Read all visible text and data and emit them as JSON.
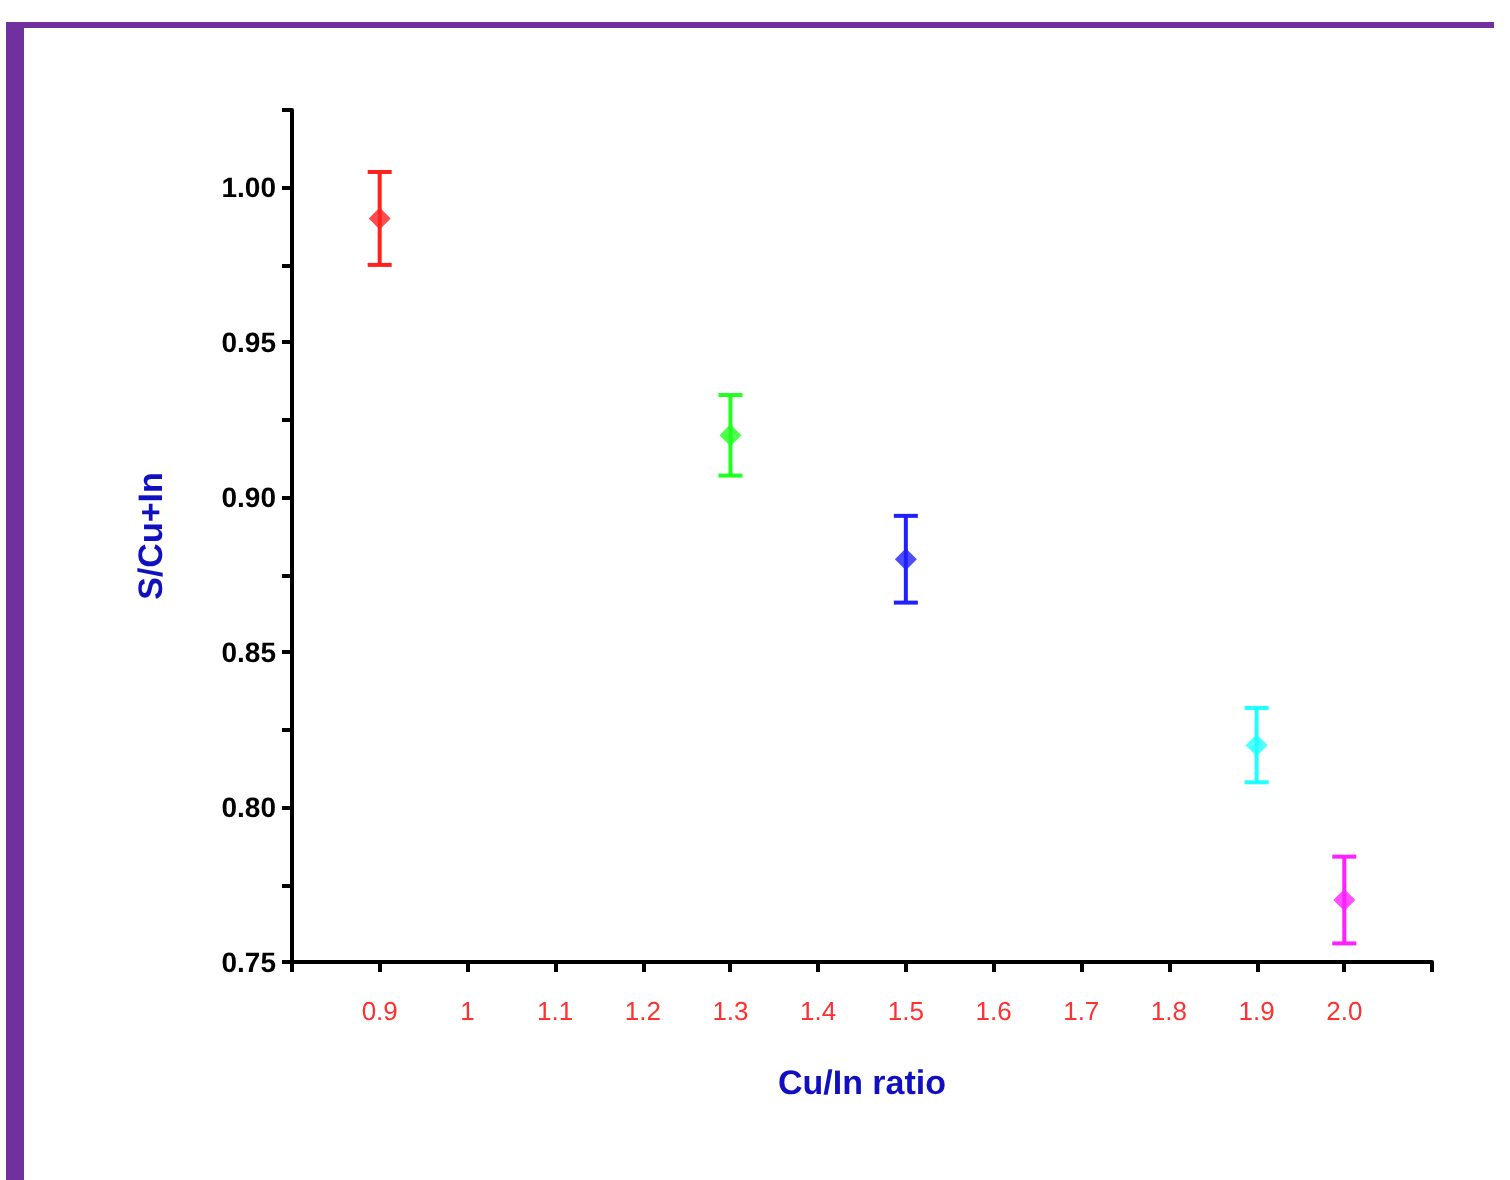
{
  "chart_data": {
    "type": "scatter",
    "xlabel": "Cu/In ratio",
    "ylabel": "S/Cu+In",
    "x": [
      0.9,
      1.3,
      1.5,
      1.9,
      2.0
    ],
    "series": [
      {
        "values": [
          0.99,
          0.92,
          0.88,
          0.82,
          0.77
        ],
        "colors": [
          "#ff2020",
          "#20ff20",
          "#2020ff",
          "#20ffff",
          "#ff20ff"
        ],
        "errors": [
          0.015,
          0.013,
          0.014,
          0.012,
          0.014
        ]
      }
    ],
    "xlim": [
      0.8,
      2.1
    ],
    "xticks": [
      {
        "value": 0.8,
        "label": null
      },
      0.9,
      1,
      1.1,
      1.2,
      1.3,
      1.4,
      1.5,
      1.6,
      1.7,
      1.8,
      1.9,
      {
        "value": 2.0,
        "label": "2.0"
      },
      {
        "value": 2.1,
        "label": null
      }
    ],
    "ylim": [
      0.75,
      1.025
    ],
    "yticks": [
      0.75,
      {
        "value": 0.775,
        "label": null
      },
      {
        "value": 0.8,
        "label": "0.80"
      },
      {
        "value": 0.825,
        "label": null
      },
      0.85,
      {
        "value": 0.875,
        "label": null
      },
      {
        "value": 0.9,
        "label": "0.90"
      },
      {
        "value": 0.925,
        "label": null
      },
      0.95,
      {
        "value": 0.975,
        "label": null
      },
      {
        "value": 1.0,
        "label": "1.00"
      },
      {
        "value": 1.025,
        "label": null
      }
    ],
    "marker": "diamond",
    "grid": false
  }
}
